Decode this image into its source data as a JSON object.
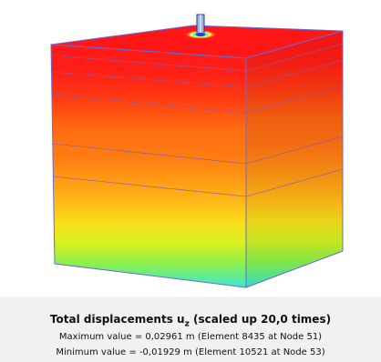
{
  "plot": {
    "colormap": {
      "top": "#ff1a1a",
      "upper": "#ff3b10",
      "mid": "#ff7a10",
      "orange": "#ff9d10",
      "yellow": "#f4e21a",
      "lime": "#b6ef2c",
      "cyan": "#3fe6c8"
    }
  },
  "results": {
    "title_main": "Total displacements u",
    "title_sub": "z",
    "title_suffix": "(scaled up 20,0 times)",
    "max_line": "Maximum value = 0,02961 m (Element 8435 at Node 51)",
    "min_line": "Minimum value = -0,01929 m (Element 10521 at Node 53)"
  }
}
